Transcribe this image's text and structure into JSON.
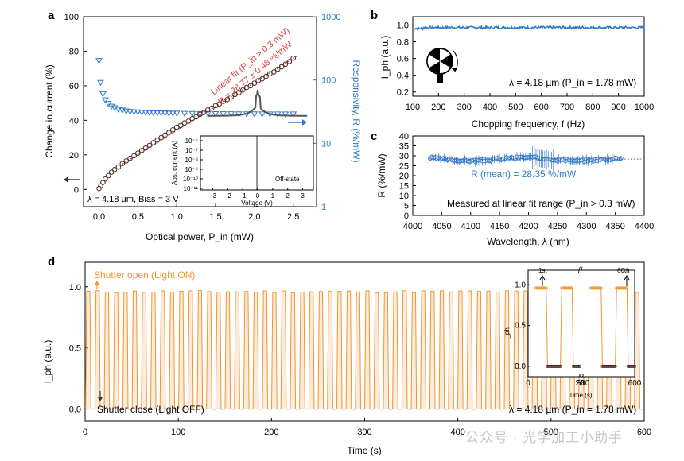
{
  "colors": {
    "dark": "#4a2a22",
    "red": "#d8443e",
    "blue": "#2f79c9",
    "orange": "#f0962a",
    "axis": "#000000"
  },
  "watermark": "公众号 · 光学加工小助手",
  "panels": {
    "a": "a",
    "b": "b",
    "c": "c",
    "d": "d"
  },
  "chart_data": [
    {
      "id": "a",
      "type": "scatter",
      "xlabel": "Optical power, P_in (mW)",
      "ylabel_left": "Change in current (%)",
      "ylabel_right": "Responsivity, R (%/mW)",
      "xlim": [
        -0.2,
        2.8
      ],
      "ylim_left": [
        -10,
        100
      ],
      "ylim_right_log": [
        1,
        1000
      ],
      "xticks": [
        "0.0",
        "0.5",
        "1.0",
        "1.5",
        "2.0",
        "2.5"
      ],
      "yticks_left": [
        "0",
        "20",
        "40",
        "60",
        "80",
        "100"
      ],
      "yticks_right": [
        "1",
        "10",
        "100",
        "1000"
      ],
      "fit_label_line1": "Linear fit (P_in > 0.3 mW)",
      "fit_label_line2": "R = 28.77 ± 0.48 %/mW",
      "condition_text": "λ = 4.18 µm, Bias = 3 V",
      "change_current": {
        "x": [
          0.0,
          0.02,
          0.05,
          0.08,
          0.12,
          0.16,
          0.2,
          0.25,
          0.3,
          0.35,
          0.4,
          0.45,
          0.5,
          0.55,
          0.6,
          0.65,
          0.7,
          0.75,
          0.8,
          0.85,
          0.9,
          0.95,
          1.0,
          1.05,
          1.1,
          1.15,
          1.2,
          1.25,
          1.3,
          1.35,
          1.4,
          1.45,
          1.5,
          1.55,
          1.6,
          1.65,
          1.7,
          1.75,
          1.8,
          1.85,
          1.9,
          1.95,
          2.0,
          2.05,
          2.1,
          2.15,
          2.2,
          2.25,
          2.3,
          2.35,
          2.4,
          2.45,
          2.5
        ],
        "y": [
          0.5,
          2,
          4,
          6,
          8,
          10,
          11.5,
          13,
          15,
          16.5,
          18,
          19.5,
          21,
          22.5,
          24,
          25.5,
          27,
          28.5,
          30,
          31.5,
          33,
          34.5,
          36,
          37,
          38.5,
          39.5,
          41,
          42,
          43.5,
          44.5,
          46,
          47,
          48.5,
          49.5,
          51,
          52,
          53.5,
          55,
          56,
          57.5,
          59,
          60,
          61.5,
          63,
          64,
          65.5,
          67,
          68,
          69.5,
          71,
          72.5,
          74,
          76
        ]
      },
      "responsivity": {
        "x": [
          0.0,
          0.02,
          0.05,
          0.08,
          0.12,
          0.16,
          0.2,
          0.25,
          0.3,
          0.35,
          0.4,
          0.45,
          0.5,
          0.55,
          0.6,
          0.65,
          0.7,
          0.75,
          0.8,
          0.85,
          0.9,
          0.95,
          1.0,
          1.1,
          1.2,
          1.3,
          1.4,
          1.5,
          1.6,
          1.7,
          1.8,
          1.9,
          2.0,
          2.1,
          2.2,
          2.3,
          2.4,
          2.5
        ],
        "y": [
          200,
          90,
          60,
          48,
          42,
          38,
          36,
          34,
          33,
          32,
          31.5,
          31,
          31,
          30.5,
          30.5,
          30,
          30,
          30,
          29.8,
          29.8,
          29.5,
          29.5,
          29.5,
          29.3,
          29.2,
          29.1,
          29,
          29,
          28.9,
          28.9,
          28.8,
          28.8,
          28.8,
          28.7,
          28.7,
          28.7,
          28.7,
          28.7
        ]
      },
      "inset": {
        "xlabel": "Voltage (V)",
        "ylabel": "Abs. current (A)",
        "xticks": [
          "−3",
          "−2",
          "−1",
          "0",
          "1",
          "2",
          "3"
        ],
        "yticks": [
          "10⁻⁶",
          "10⁻⁷",
          "10⁻⁸",
          "10⁻⁹",
          "10⁻¹⁰",
          "10⁻¹¹"
        ],
        "label": "Off-state"
      }
    },
    {
      "id": "b",
      "type": "line",
      "xlabel": "Chopping frequency, f (Hz)",
      "ylabel": "I_ph (a.u.)",
      "xlim": [
        100,
        1000
      ],
      "ylim": [
        0.15,
        1.1
      ],
      "xticks": [
        "100",
        "200",
        "300",
        "400",
        "500",
        "600",
        "700",
        "800",
        "900",
        "1000"
      ],
      "yticks": [
        "0.2",
        "0.4",
        "0.6",
        "0.8",
        "1.0"
      ],
      "value": 0.97,
      "annotation": "λ = 4.18 µm (P_in = 1.78 mW)"
    },
    {
      "id": "c",
      "type": "scatter",
      "xlabel": "Wavelength, λ (nm)",
      "ylabel": "R (%/mW)",
      "xlim": [
        4000,
        4400
      ],
      "ylim": [
        0,
        40
      ],
      "xticks": [
        "4000",
        "4050",
        "4100",
        "4150",
        "4200",
        "4250",
        "4300",
        "4350",
        "4400"
      ],
      "yticks": [
        "0",
        "5",
        "10",
        "15",
        "20",
        "25",
        "30",
        "35",
        "40"
      ],
      "mean": 28.35,
      "wl_range": [
        4030,
        4360
      ],
      "mean_label": "R (mean) = 28.35 %/mW",
      "caption": "Measured at linear fit range (P_in > 0.3 mW)"
    },
    {
      "id": "d",
      "type": "line",
      "xlabel": "Time (s)",
      "ylabel": "I_ph (a.u.)",
      "xlim": [
        0,
        600
      ],
      "ylim": [
        -0.1,
        1.2
      ],
      "xticks": [
        "0",
        "100",
        "200",
        "300",
        "400",
        "500",
        "600"
      ],
      "yticks": [
        "0.0",
        "0.5",
        "1.0"
      ],
      "cycles": 60,
      "on_level": 0.96,
      "off_level": 0.0,
      "shutter_open": "Shutter open (Light ON)",
      "shutter_close": "Shutter close (Light OFF)",
      "annotation": "λ = 4.18 µm (P_in = 1.78 mW)",
      "inset": {
        "xlabel": "Time (s)",
        "ylabel": "I_ph",
        "xticks": [
          "0",
          "20",
          "580",
          "600"
        ],
        "yticks": [
          "0.0",
          "0.5",
          "1.0"
        ],
        "first": "1st",
        "last": "60th"
      }
    }
  ]
}
